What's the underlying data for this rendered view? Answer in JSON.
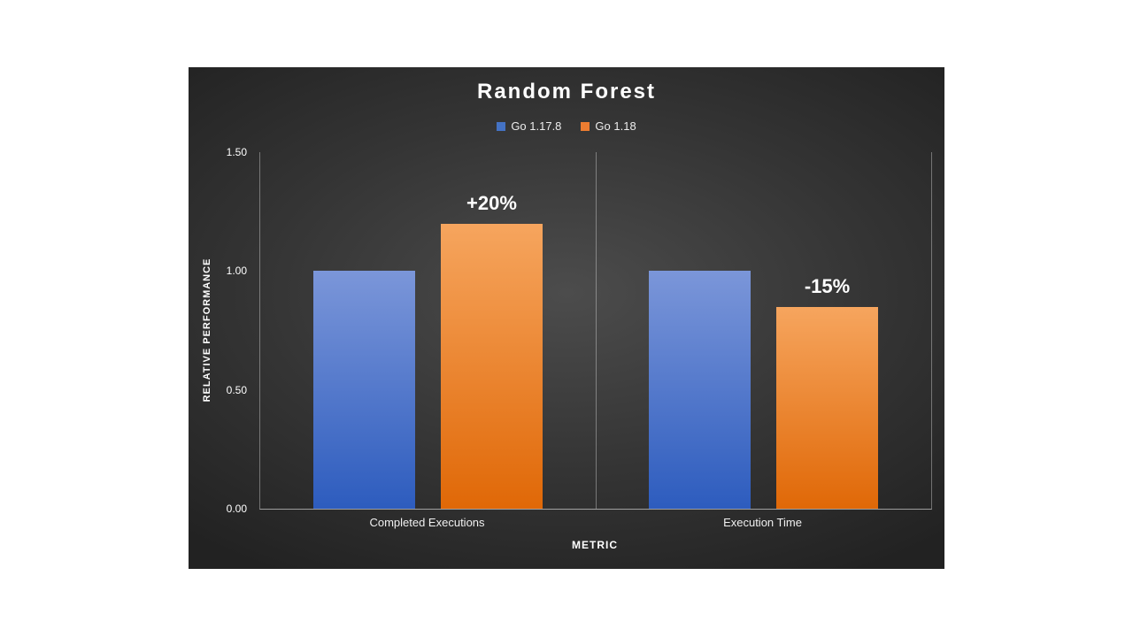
{
  "window": {
    "background": "#ffffff"
  },
  "chart_data": {
    "type": "bar",
    "title": "Random Forest",
    "categories": [
      "Completed Executions",
      "Execution Time"
    ],
    "series": [
      {
        "name": "Go 1.17.8",
        "legend_color": "#4472c4",
        "bar_gradient_top": "#7b96d9",
        "bar_gradient_bottom": "#2d5cbe",
        "values": [
          1.0,
          1.0
        ],
        "data_labels": [
          "",
          ""
        ]
      },
      {
        "name": "Go 1.18",
        "legend_color": "#ed7d31",
        "bar_gradient_top": "#f6a55e",
        "bar_gradient_bottom": "#e06807",
        "values": [
          1.2,
          0.85
        ],
        "data_labels": [
          "+20%",
          "-15%"
        ]
      }
    ],
    "xlabel": "METRIC",
    "ylabel": "RELATIVE PERFORMANCE",
    "ylim": [
      0,
      1.5
    ],
    "yticks": [
      0,
      0.5,
      1,
      1.5
    ],
    "ytick_labels": [
      "0.00",
      "0.50",
      "1.00",
      "1.50"
    ],
    "legend_position": "top",
    "grid": "vertical category dividers only"
  }
}
